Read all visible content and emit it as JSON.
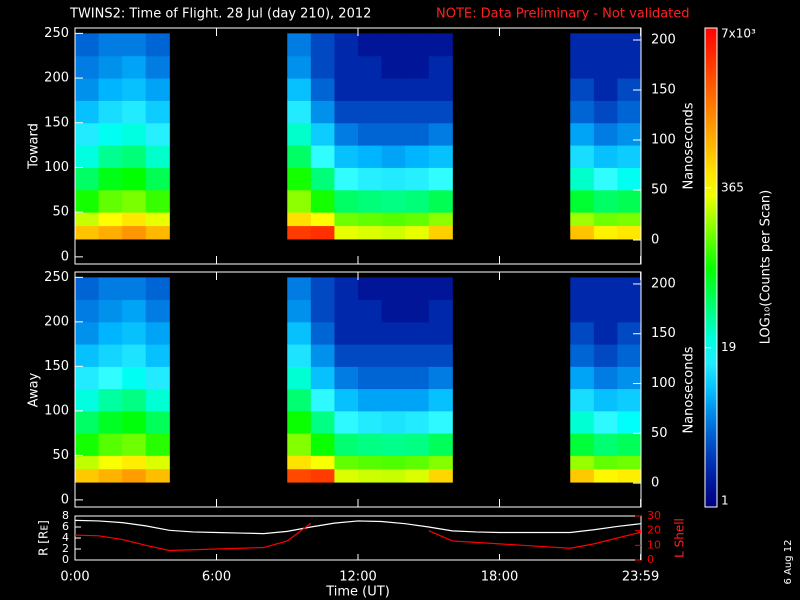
{
  "chart_data": [
    {
      "type": "heatmap",
      "title": "TWINS2: Time of Flight. 28 Jul (day 210), 2012",
      "note": "NOTE: Data Preliminary - Not validated",
      "ylabel": "Toward",
      "y2label": "Nanoseconds",
      "x_bins": [
        0,
        1,
        2,
        3,
        4,
        5,
        6,
        7,
        8,
        9,
        10,
        11,
        12,
        13,
        14,
        15,
        16,
        17,
        18,
        19,
        20,
        21,
        22,
        23,
        24
      ],
      "y_bins": [
        20,
        35,
        50,
        75,
        100,
        125,
        150,
        175,
        200,
        225,
        250
      ],
      "values": [
        [
          700,
          250,
          90,
          45,
          22,
          14,
          9,
          6,
          5,
          4
        ],
        [
          900,
          350,
          140,
          70,
          35,
          20,
          12,
          8,
          6,
          5
        ],
        [
          1200,
          450,
          160,
          80,
          40,
          22,
          14,
          9,
          7,
          5
        ],
        [
          800,
          300,
          110,
          50,
          25,
          15,
          10,
          7,
          5,
          4
        ],
        null,
        null,
        null,
        null,
        null,
        [
          3500,
          500,
          180,
          90,
          45,
          25,
          14,
          9,
          6,
          5
        ],
        [
          4000,
          350,
          90,
          40,
          18,
          10,
          6,
          4,
          3,
          3
        ],
        [
          300,
          150,
          45,
          18,
          9,
          5,
          3,
          2,
          2,
          2
        ],
        [
          280,
          140,
          40,
          15,
          8,
          4,
          3,
          2,
          2,
          1.5
        ],
        [
          260,
          130,
          38,
          14,
          7,
          4,
          3,
          2,
          1.5,
          1.5
        ],
        [
          300,
          140,
          40,
          15,
          8,
          4,
          3,
          2,
          1.5,
          1.5
        ],
        [
          600,
          180,
          50,
          18,
          9,
          5,
          3,
          2,
          2,
          1.5
        ],
        null,
        null,
        null,
        null,
        null,
        [
          700,
          200,
          60,
          25,
          12,
          7,
          4,
          3,
          2,
          2
        ],
        [
          400,
          150,
          45,
          18,
          9,
          5,
          3,
          2,
          2,
          2
        ],
        [
          450,
          160,
          50,
          20,
          10,
          6,
          4,
          3,
          2,
          2
        ]
      ],
      "xlim": [
        0,
        24
      ],
      "ylim": [
        -8,
        256
      ],
      "yticks": [
        0,
        50,
        100,
        150,
        200,
        250
      ],
      "y2lim": [
        -24,
        212
      ],
      "y2ticks": [
        0,
        50,
        100,
        150,
        200
      ]
    },
    {
      "type": "heatmap",
      "ylabel": "Away",
      "y2label": "Nanoseconds",
      "x_bins": [
        0,
        1,
        2,
        3,
        4,
        5,
        6,
        7,
        8,
        9,
        10,
        11,
        12,
        13,
        14,
        15,
        16,
        17,
        18,
        19,
        20,
        21,
        22,
        23,
        24
      ],
      "y_bins": [
        20,
        35,
        50,
        75,
        100,
        125,
        150,
        175,
        200,
        225,
        250
      ],
      "values": [
        [
          650,
          240,
          90,
          45,
          22,
          14,
          9,
          6,
          5,
          4
        ],
        [
          850,
          330,
          130,
          65,
          32,
          18,
          11,
          8,
          6,
          5
        ],
        [
          1100,
          420,
          150,
          75,
          38,
          20,
          13,
          9,
          7,
          5
        ],
        [
          750,
          280,
          100,
          48,
          24,
          14,
          9,
          7,
          5,
          4
        ],
        null,
        null,
        null,
        null,
        null,
        [
          3000,
          480,
          170,
          85,
          42,
          24,
          13,
          9,
          6,
          5
        ],
        [
          3500,
          330,
          85,
          38,
          17,
          9,
          6,
          4,
          3,
          3
        ],
        [
          280,
          140,
          42,
          17,
          9,
          5,
          3,
          2,
          2,
          2
        ],
        [
          260,
          130,
          38,
          14,
          7,
          4,
          3,
          2,
          2,
          1.5
        ],
        [
          250,
          125,
          36,
          13,
          7,
          4,
          3,
          2,
          1.5,
          1.5
        ],
        [
          280,
          135,
          38,
          14,
          7,
          4,
          3,
          2,
          1.5,
          1.5
        ],
        [
          550,
          170,
          48,
          17,
          9,
          5,
          3,
          2,
          2,
          1.5
        ],
        null,
        null,
        null,
        null,
        null,
        [
          650,
          190,
          58,
          24,
          12,
          7,
          4,
          3,
          2,
          2
        ],
        [
          380,
          140,
          42,
          17,
          9,
          5,
          3,
          2,
          2,
          2
        ],
        [
          420,
          150,
          48,
          19,
          10,
          6,
          4,
          3,
          2,
          2
        ]
      ],
      "xlim": [
        0,
        24
      ],
      "ylim": [
        -8,
        256
      ],
      "yticks": [
        0,
        50,
        100,
        150,
        200,
        250
      ],
      "y2lim": [
        -24,
        212
      ],
      "y2ticks": [
        0,
        50,
        100,
        150,
        200
      ]
    },
    {
      "type": "line",
      "ylabel": "R [Rᴇ]",
      "y2label": "L Shell",
      "xlabel": "Time (UT)",
      "date_stamp": "6 Aug 12",
      "x": [
        0,
        1,
        2,
        3,
        4,
        5,
        6,
        7,
        8,
        9,
        10,
        11,
        12,
        13,
        14,
        15,
        16,
        17,
        18,
        19,
        20,
        21,
        22,
        23,
        24
      ],
      "series": [
        {
          "name": "R",
          "color": "#ffffff",
          "values": [
            7.2,
            7.1,
            6.8,
            6.2,
            5.4,
            5.1,
            5.0,
            4.9,
            4.8,
            5.2,
            6.0,
            6.7,
            7.1,
            7.0,
            6.6,
            6.0,
            5.3,
            5.1,
            5.0,
            5.0,
            5.0,
            5.0,
            5.5,
            6.1,
            6.6
          ]
        },
        {
          "name": "L Shell",
          "color": "#ff0000",
          "axis": "y2",
          "values": [
            17,
            16.5,
            14,
            10,
            6.5,
            7,
            7.5,
            8,
            8.5,
            13,
            25,
            null,
            null,
            null,
            null,
            20,
            13,
            12,
            11,
            10,
            9,
            8,
            11,
            15,
            19
          ]
        }
      ],
      "xlim": [
        0,
        24
      ],
      "xticks": [
        {
          "value": 0,
          "label": "0:00"
        },
        {
          "value": 6,
          "label": "6:00"
        },
        {
          "value": 12,
          "label": "12:00"
        },
        {
          "value": 18,
          "label": "18:00"
        },
        {
          "value": 23.983,
          "label": "23:59"
        }
      ],
      "ylim": [
        0,
        8
      ],
      "yticks": [
        0,
        2,
        4,
        6,
        8
      ],
      "y2lim": [
        0,
        30
      ],
      "y2ticks": [
        0,
        10,
        20,
        30
      ]
    },
    {
      "type": "colorbar",
      "label": "LOG₁₀(Counts per Scan)",
      "log": true,
      "lim": [
        1,
        7000
      ],
      "ticks": [
        1,
        19,
        365,
        {
          "value": 7000,
          "label": "7x10³"
        }
      ]
    }
  ]
}
